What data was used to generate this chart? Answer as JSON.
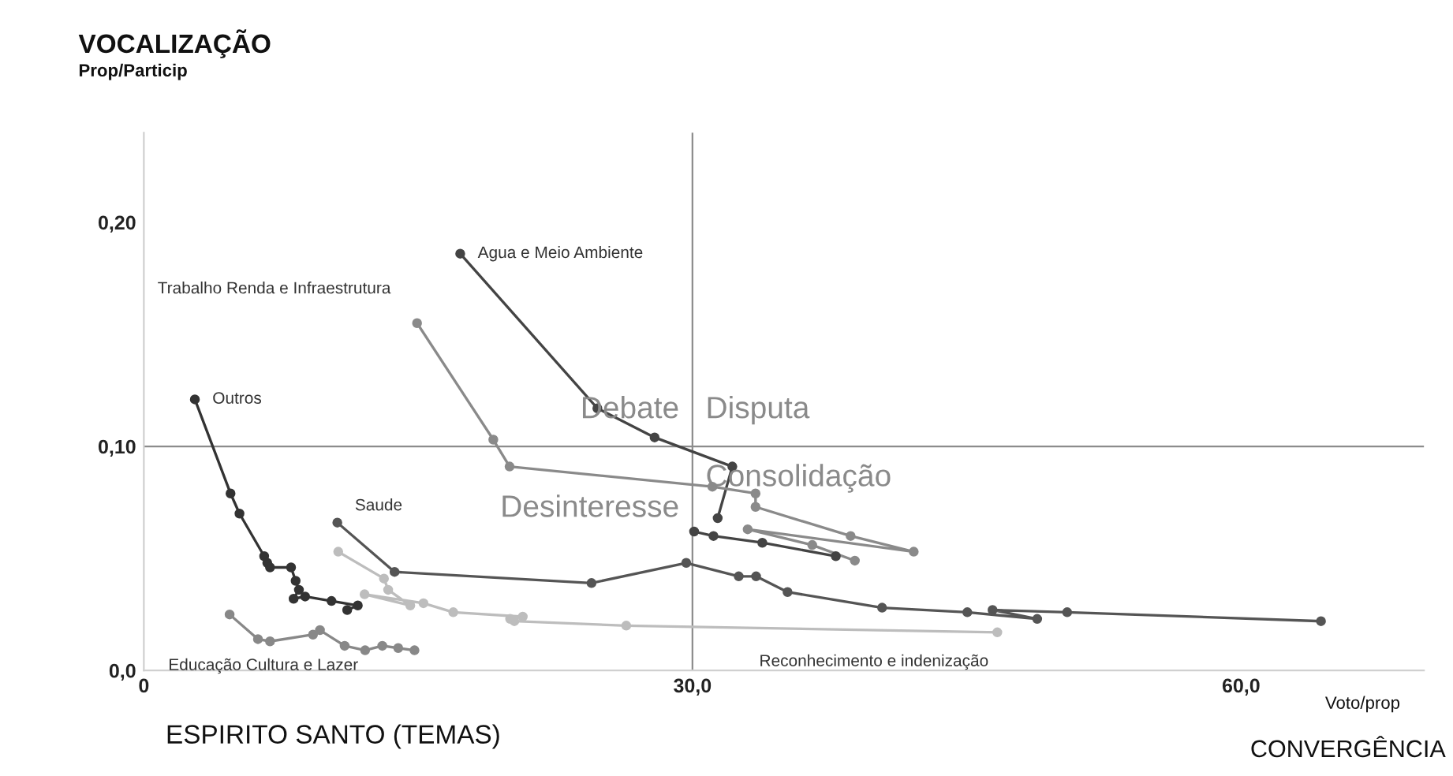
{
  "chart_data": {
    "type": "line",
    "title": "ESPIRITO SANTO (TEMAS)",
    "xlabel": "Voto/prop",
    "ylabel": "Prop/Particip",
    "annotations": [
      "Debate",
      "Disputa",
      "Desinteresse",
      "Consolidação",
      "VOCALIZAÇÃO",
      "CONVERGÊNCIA"
    ],
    "xlim": [
      0,
      70
    ],
    "ylim": [
      0,
      0.24
    ],
    "xticks": [
      0,
      {
        "value": 30,
        "label": "30,0"
      },
      {
        "value": 60,
        "label": "60,0"
      }
    ],
    "yticks": [
      {
        "value": 0,
        "label": "0,0"
      },
      {
        "value": 0.1,
        "label": "0,10"
      },
      {
        "value": 0.2,
        "label": "0,20"
      }
    ],
    "ref_lines": [
      {
        "axis": "x",
        "value": 30,
        "color": "#8c8c8c"
      },
      {
        "axis": "y",
        "value": 0.1,
        "color": "#8c8c8c"
      }
    ],
    "marker": "circle",
    "grid": false,
    "legend": false,
    "series": [
      {
        "name": "Agua e Meio Ambiente",
        "color": "#444444",
        "x": [
          17.3,
          24.8,
          27.93,
          32.18,
          31.38
        ],
        "values": [
          0.186,
          0.117,
          0.104,
          0.091,
          0.068
        ]
      },
      {
        "name": "Trabalho Renda e Infraestrutura",
        "color": "#8a8a8a",
        "x": [
          14.94,
          19.11,
          20.0,
          31.09,
          33.45,
          33.45,
          38.65,
          42.1,
          33.02,
          36.55,
          38.88
        ],
        "values": [
          0.155,
          0.103,
          0.091,
          0.082,
          0.079,
          0.073,
          0.06,
          0.053,
          0.063,
          0.056,
          0.049
        ]
      },
      {
        "name": "Outros",
        "color": "#333333",
        "x": [
          2.79,
          4.74,
          5.23,
          6.58,
          6.75,
          6.9,
          8.05,
          8.3,
          8.48,
          8.19,
          8.82,
          10.26,
          11.7,
          11.12
        ],
        "values": [
          0.121,
          0.079,
          0.07,
          0.051,
          0.048,
          0.046,
          0.046,
          0.04,
          0.036,
          0.032,
          0.033,
          0.031,
          0.029,
          0.027
        ]
      },
      {
        "name": "Saude",
        "color": "#555555",
        "x": [
          10.58,
          13.71,
          24.48,
          29.66,
          32.53,
          33.48,
          35.2,
          40.37,
          45.03,
          48.85,
          46.41,
          50.49,
          64.37
        ],
        "values": [
          0.066,
          0.044,
          0.039,
          0.048,
          0.042,
          0.042,
          0.035,
          0.028,
          0.026,
          0.023,
          0.027,
          0.026,
          0.022
        ]
      },
      {
        "color": "#444444",
        "x": [
          30.09,
          31.15,
          33.82,
          37.84
        ],
        "values": [
          0.062,
          0.06,
          0.057,
          0.051
        ]
      },
      {
        "name": "Reconhecimento e indenização",
        "color": "#bdbdbd",
        "x": [
          10.63,
          13.13,
          13.36,
          14.57,
          12.07,
          15.29,
          16.92,
          20.72,
          20.03,
          20.26,
          26.38,
          46.67
        ],
        "values": [
          0.053,
          0.041,
          0.036,
          0.029,
          0.034,
          0.03,
          0.026,
          0.024,
          0.023,
          0.022,
          0.02,
          0.017
        ]
      },
      {
        "name": "Educação Cultura e Lazer",
        "color": "#888888",
        "x": [
          4.69,
          6.24,
          6.9,
          9.25,
          9.63,
          10.98,
          12.1,
          13.04,
          13.91,
          14.8
        ],
        "values": [
          0.025,
          0.014,
          0.013,
          0.016,
          0.018,
          0.011,
          0.009,
          0.011,
          0.01,
          0.009
        ]
      }
    ]
  }
}
